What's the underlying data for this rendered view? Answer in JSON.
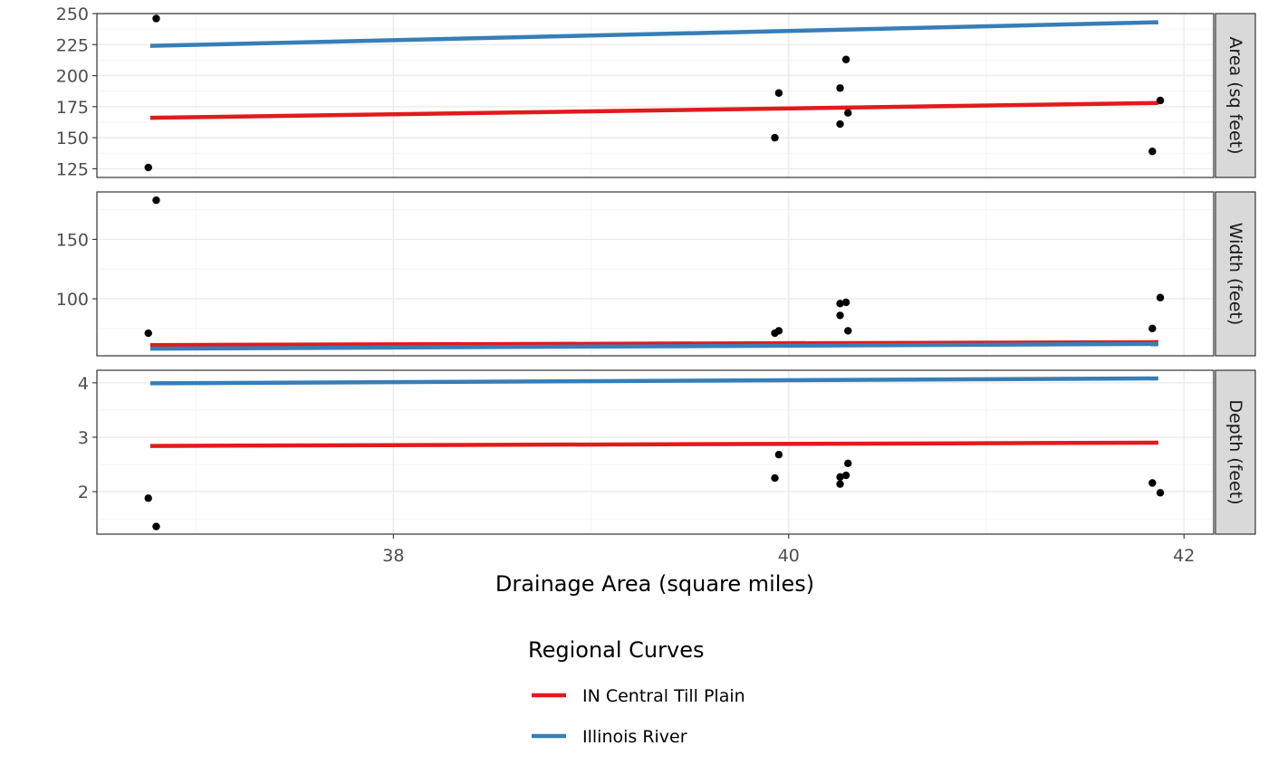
{
  "chart_data": {
    "type": "scatter",
    "xlabel": "Drainage Area (square miles)",
    "xlim": [
      36.5,
      42.15
    ],
    "x_ticks": [
      38,
      40,
      42
    ],
    "x_minor_ticks": [
      37,
      39,
      41
    ],
    "legend": {
      "title": "Regional Curves",
      "position": "bottom",
      "entries": [
        {
          "label": "IN Central Till Plain",
          "color": "#e31a1c"
        },
        {
          "label": "Illinois River",
          "color": "#377eb8"
        }
      ]
    },
    "grid": true,
    "point_color": "#000000",
    "panels": [
      {
        "strip_label": "Area (sq feet)",
        "ylim": [
          118,
          250
        ],
        "y_ticks": [
          125,
          150,
          175,
          200,
          225,
          250
        ],
        "y_minor_ticks": [
          137.5,
          162.5,
          187.5,
          212.5,
          237.5
        ],
        "points": [
          {
            "x": 36.76,
            "y": 126
          },
          {
            "x": 36.8,
            "y": 246
          },
          {
            "x": 39.93,
            "y": 150
          },
          {
            "x": 39.95,
            "y": 186
          },
          {
            "x": 40.26,
            "y": 161
          },
          {
            "x": 40.26,
            "y": 190
          },
          {
            "x": 40.29,
            "y": 213
          },
          {
            "x": 40.3,
            "y": 170
          },
          {
            "x": 41.84,
            "y": 139
          },
          {
            "x": 41.88,
            "y": 180
          }
        ],
        "lines": [
          {
            "series": "IN Central Till Plain",
            "x": [
              36.77,
              41.87
            ],
            "y": [
              166,
              178
            ]
          },
          {
            "series": "Illinois River",
            "x": [
              36.77,
              41.87
            ],
            "y": [
              224,
              243
            ]
          }
        ]
      },
      {
        "strip_label": "Width (feet)",
        "ylim": [
          52,
          190
        ],
        "y_ticks": [
          100,
          150
        ],
        "y_minor_ticks": [
          75,
          125,
          175
        ],
        "points": [
          {
            "x": 36.76,
            "y": 71
          },
          {
            "x": 36.8,
            "y": 183
          },
          {
            "x": 39.93,
            "y": 71
          },
          {
            "x": 39.95,
            "y": 73
          },
          {
            "x": 40.26,
            "y": 86
          },
          {
            "x": 40.26,
            "y": 96
          },
          {
            "x": 40.29,
            "y": 97
          },
          {
            "x": 40.3,
            "y": 73
          },
          {
            "x": 41.84,
            "y": 75
          },
          {
            "x": 41.88,
            "y": 101
          }
        ],
        "lines": [
          {
            "series": "IN Central Till Plain",
            "x": [
              36.77,
              41.87
            ],
            "y": [
              61,
              63.5
            ]
          },
          {
            "series": "Illinois River",
            "x": [
              36.77,
              41.87
            ],
            "y": [
              58,
              62
            ]
          }
        ]
      },
      {
        "strip_label": "Depth (feet)",
        "ylim": [
          1.22,
          4.23
        ],
        "y_ticks": [
          2,
          3,
          4
        ],
        "y_minor_ticks": [
          1.5,
          2.5,
          3.5
        ],
        "points": [
          {
            "x": 36.76,
            "y": 1.88
          },
          {
            "x": 36.8,
            "y": 1.36
          },
          {
            "x": 39.93,
            "y": 2.25
          },
          {
            "x": 39.95,
            "y": 2.68
          },
          {
            "x": 40.26,
            "y": 2.27
          },
          {
            "x": 40.26,
            "y": 2.14
          },
          {
            "x": 40.29,
            "y": 2.3
          },
          {
            "x": 40.3,
            "y": 2.52
          },
          {
            "x": 41.84,
            "y": 2.16
          },
          {
            "x": 41.88,
            "y": 1.98
          }
        ],
        "lines": [
          {
            "series": "IN Central Till Plain",
            "x": [
              36.77,
              41.87
            ],
            "y": [
              2.84,
              2.9
            ]
          },
          {
            "series": "Illinois River",
            "x": [
              36.77,
              41.87
            ],
            "y": [
              3.99,
              4.08
            ]
          }
        ]
      }
    ]
  }
}
